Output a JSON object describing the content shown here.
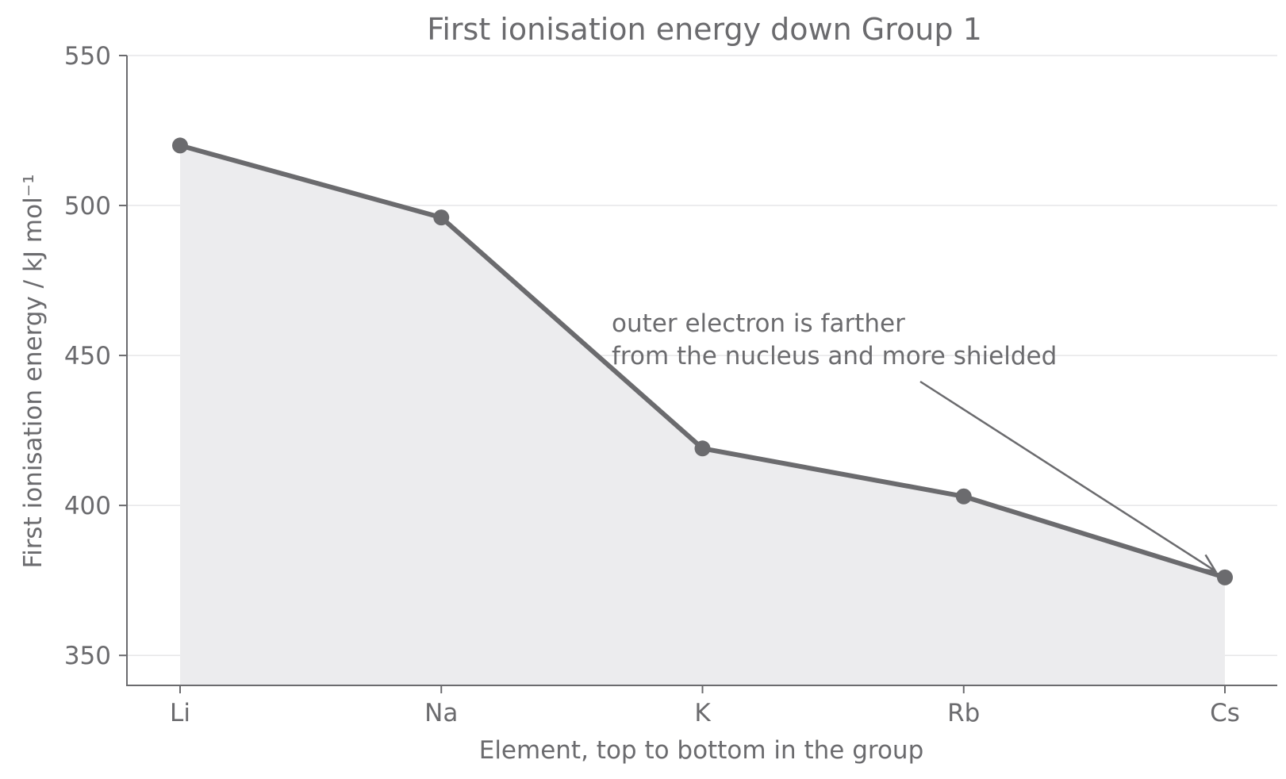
{
  "chart_data": {
    "type": "line",
    "title": "First ionisation energy down Group 1",
    "xlabel": "Element, top to bottom in the group",
    "ylabel": "First ionisation energy / kJ mol⁻¹",
    "categories": [
      "Li",
      "Na",
      "K",
      "Rb",
      "Cs"
    ],
    "series": [
      {
        "values": [
          520,
          496,
          419,
          403,
          376
        ]
      }
    ],
    "ylim": [
      340,
      550
    ],
    "yticks": [
      350,
      400,
      450,
      500,
      550
    ],
    "grid": "horizontal",
    "area_fill": true,
    "annotation": {
      "lines": [
        "outer electron is farther",
        "from the nucleus and more shielded"
      ],
      "points_to": "Cs"
    },
    "colors": {
      "line": "#6b6b6e",
      "area": "#ececee",
      "grid": "#e6e6e8"
    }
  }
}
